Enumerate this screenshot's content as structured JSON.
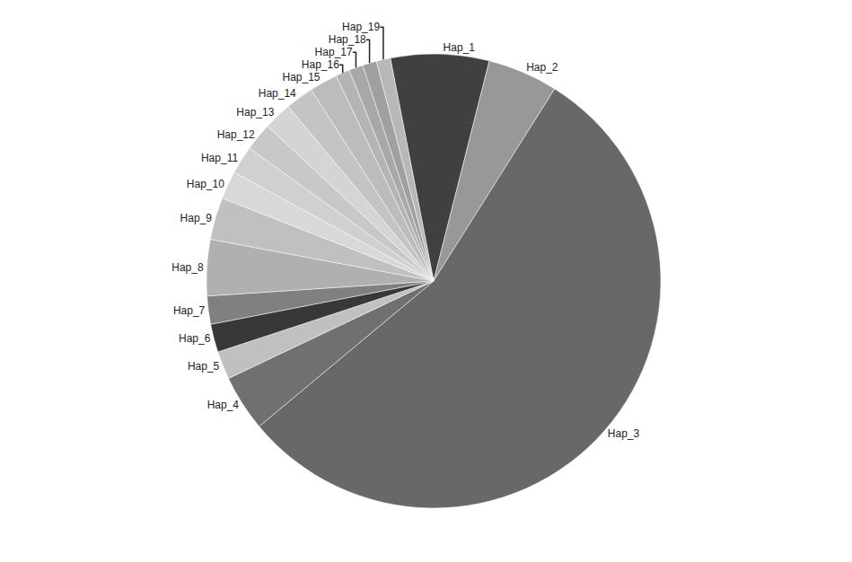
{
  "chart_data": {
    "type": "pie",
    "categories": [
      "Hap_1",
      "Hap_2",
      "Hap_3",
      "Hap_4",
      "Hap_5",
      "Hap_6",
      "Hap_7",
      "Hap_8",
      "Hap_9",
      "Hap_10",
      "Hap_11",
      "Hap_12",
      "Hap_13",
      "Hap_14",
      "Hap_15",
      "Hap_16",
      "Hap_17",
      "Hap_18",
      "Hap_19"
    ],
    "values": [
      7,
      5,
      55,
      4,
      2,
      2,
      2,
      4,
      3,
      2,
      2,
      2,
      2,
      2,
      2,
      1,
      1,
      1,
      1
    ],
    "colors": [
      "#404040",
      "#989898",
      "#686868",
      "#707070",
      "#c0c0c0",
      "#383838",
      "#808080",
      "#b0b0b0",
      "#c0c0c0",
      "#d8d8d8",
      "#d0d0d0",
      "#c8c8c8",
      "#d4d4d4",
      "#c4c4c4",
      "#bcbcbc",
      "#b4b4b4",
      "#a8a8a8",
      "#a0a0a0",
      "#b8b8b8"
    ]
  }
}
